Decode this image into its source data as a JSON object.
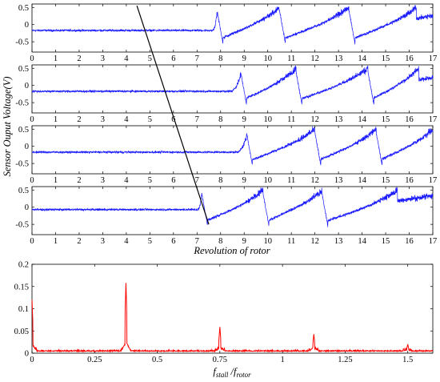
{
  "chart_data": [
    {
      "type": "line",
      "panel": "sensor-1",
      "xlim": [
        0,
        17
      ],
      "ylim": [
        -0.8,
        0.6
      ],
      "xticks": [
        "0",
        "1",
        "2",
        "3",
        "4",
        "5",
        "6",
        "7",
        "8",
        "9",
        "10",
        "11",
        "12",
        "13",
        "14",
        "15",
        "16",
        "17"
      ],
      "yticks": [
        "0.5",
        "0",
        "-0.5"
      ],
      "baseline": -0.17,
      "stall_onset": 7.6,
      "stall_peaks": [
        7.85,
        10.5,
        13.45,
        16.3
      ],
      "color": "#1a1aff"
    },
    {
      "type": "line",
      "panel": "sensor-2",
      "xlim": [
        0,
        17
      ],
      "ylim": [
        -0.8,
        0.6
      ],
      "xticks": [
        "0",
        "1",
        "2",
        "3",
        "4",
        "5",
        "6",
        "7",
        "8",
        "9",
        "10",
        "11",
        "12",
        "13",
        "14",
        "15",
        "16",
        "17"
      ],
      "yticks": [
        "0.5",
        "0",
        "-0.5"
      ],
      "baseline": -0.17,
      "stall_onset": 8.3,
      "stall_peaks": [
        8.85,
        11.2,
        14.25,
        16.4
      ],
      "color": "#1a1aff"
    },
    {
      "type": "line",
      "panel": "sensor-3",
      "xlim": [
        0,
        17
      ],
      "ylim": [
        -0.8,
        0.6
      ],
      "xticks": [
        "0",
        "1",
        "2",
        "3",
        "4",
        "5",
        "6",
        "7",
        "8",
        "9",
        "10",
        "11",
        "12",
        "13",
        "14",
        "15",
        "16",
        "17"
      ],
      "yticks": [
        "0.5",
        "0",
        "-0.5"
      ],
      "baseline": -0.17,
      "stall_onset": 8.6,
      "stall_peaks": [
        9.1,
        12.0,
        14.6,
        17.0
      ],
      "color": "#1a1aff"
    },
    {
      "type": "line",
      "panel": "sensor-4",
      "xlim": [
        0,
        17
      ],
      "ylim": [
        -0.8,
        0.6
      ],
      "xticks": [
        "0",
        "1",
        "2",
        "3",
        "4",
        "5",
        "6",
        "7",
        "8",
        "9",
        "10",
        "11",
        "12",
        "13",
        "14",
        "15",
        "16",
        "17"
      ],
      "yticks": [
        "0.5",
        "0",
        "-0.5"
      ],
      "baseline": -0.07,
      "stall_onset": 7.0,
      "stall_peaks": [
        7.2,
        9.8,
        12.3,
        15.5
      ],
      "color": "#1a1aff",
      "xlabel": "Revolution of rotor"
    },
    {
      "type": "line",
      "panel": "spectrum",
      "xlim": [
        0,
        1.6
      ],
      "ylim": [
        0,
        0.2
      ],
      "xticks": [
        "0",
        "0.25",
        "0.5",
        "0.75",
        "1",
        "1.25",
        "1.5"
      ],
      "yticks": [
        "0.2",
        "0.15",
        "0.1",
        "0.05",
        "0"
      ],
      "peaks": [
        {
          "x": 0.0,
          "y": 0.12
        },
        {
          "x": 0.375,
          "y": 0.158
        },
        {
          "x": 0.75,
          "y": 0.059
        },
        {
          "x": 1.125,
          "y": 0.043
        },
        {
          "x": 1.5,
          "y": 0.02
        }
      ],
      "noise_floor": 0.004,
      "color": "#ff0000",
      "xlabel_main": "f",
      "xlabel_sub1": "stall",
      "xlabel_sep": " /",
      "xlabel_sub2": "rotor"
    }
  ],
  "shared": {
    "ylabel": "Sensor Ouput Voltage(V)",
    "propagation_line": {
      "from": {
        "panel": 0,
        "x": 4.45,
        "y": 0.55
      },
      "to": {
        "panel": 3,
        "x": 7.5,
        "y": -0.5
      }
    }
  }
}
